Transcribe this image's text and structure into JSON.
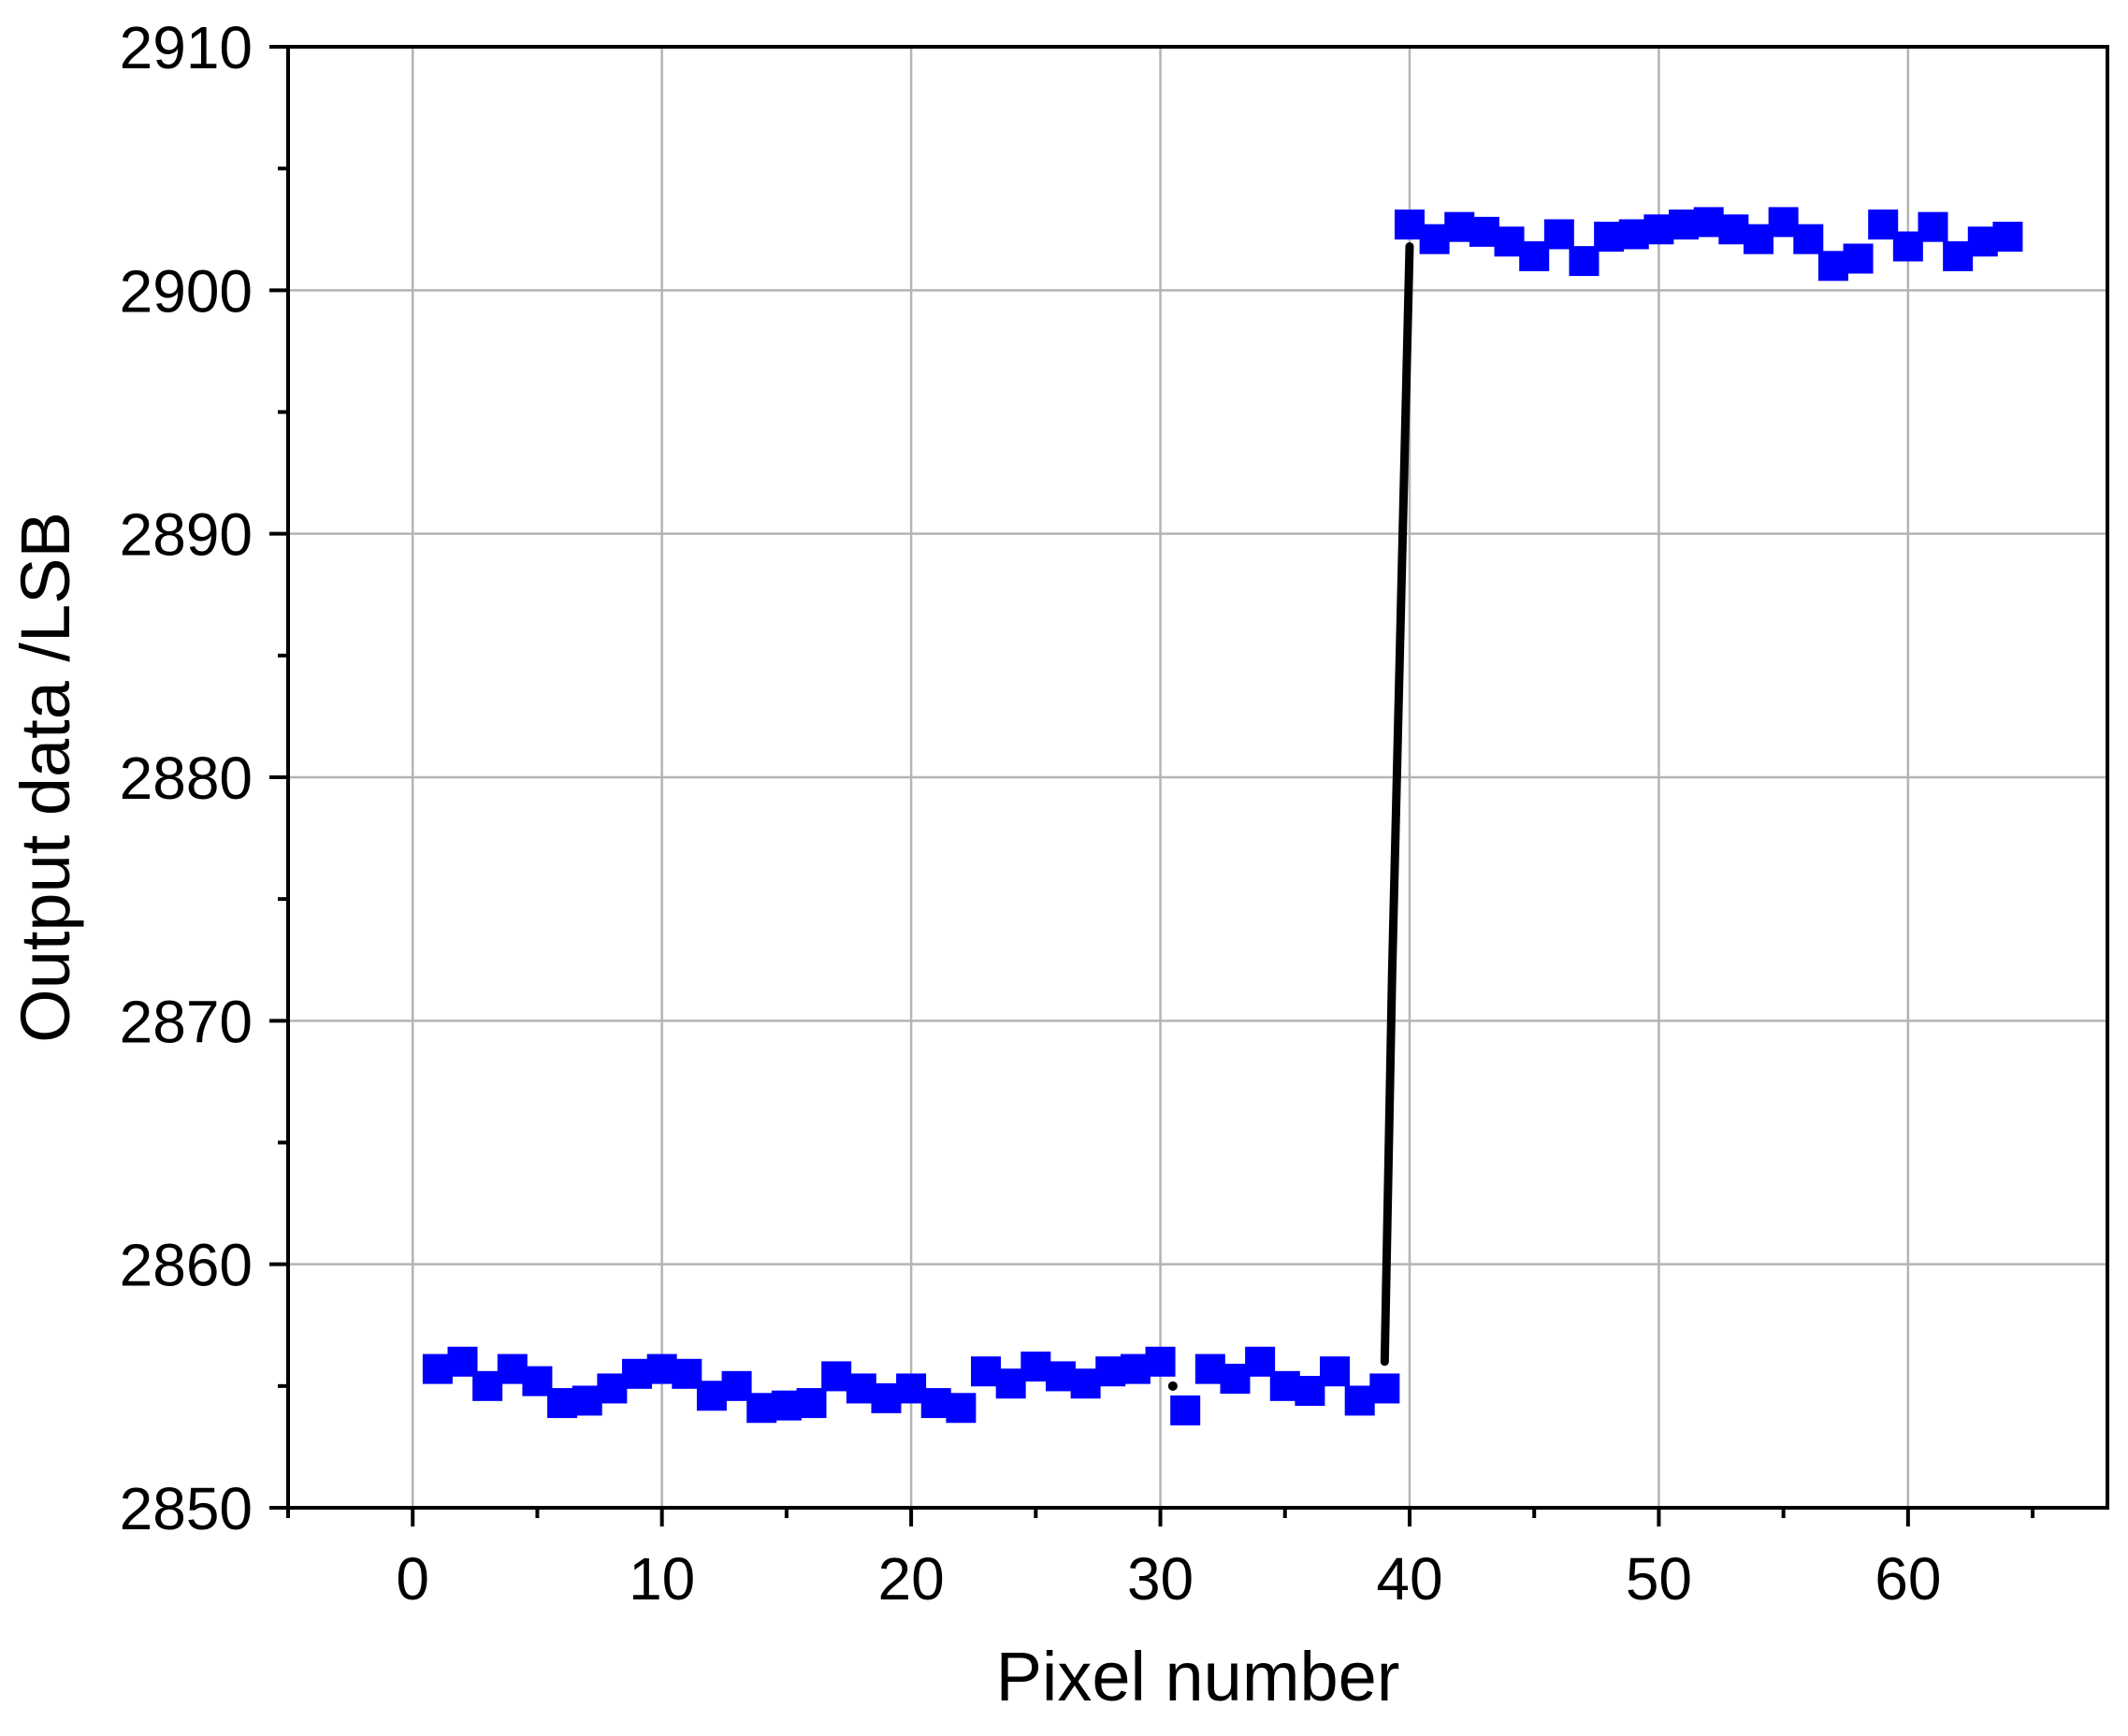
{
  "chart_data": {
    "type": "scatter",
    "title": "",
    "xlabel": "Pixel number",
    "ylabel": "Output data /LSB",
    "xlim": [
      -5,
      68
    ],
    "ylim": [
      2850,
      2910
    ],
    "xticks": [
      0,
      10,
      20,
      30,
      40,
      50,
      60
    ],
    "yticks": [
      2850,
      2860,
      2870,
      2880,
      2890,
      2900,
      2910
    ],
    "grid": true,
    "marker": "square",
    "marker_color": "#0000ff",
    "line_color": "#000000",
    "series": [
      {
        "x": [
          1,
          2,
          3,
          4,
          5,
          6,
          7,
          8,
          9,
          10,
          11,
          12,
          13,
          14,
          15,
          16,
          17,
          18,
          19,
          20,
          21,
          22,
          23,
          24,
          25,
          26,
          27,
          28,
          29,
          30,
          31,
          32,
          33,
          34,
          35,
          36,
          37,
          38,
          39,
          40,
          41,
          42,
          43,
          44,
          45,
          46,
          47,
          48,
          49,
          50,
          51,
          52,
          53,
          54,
          55,
          56,
          57,
          58,
          59,
          60,
          61,
          62,
          63,
          64
        ],
        "y": [
          2855.7,
          2856.0,
          2855.0,
          2855.7,
          2855.2,
          2854.3,
          2854.4,
          2854.9,
          2855.5,
          2855.7,
          2855.5,
          2854.6,
          2855.0,
          2854.1,
          2854.2,
          2854.3,
          2855.4,
          2854.9,
          2854.5,
          2854.9,
          2854.3,
          2854.1,
          2855.6,
          2855.1,
          2855.8,
          2855.4,
          2855.1,
          2855.6,
          2855.7,
          2856.0,
          2854.0,
          2855.7,
          2855.3,
          2856.0,
          2855.0,
          2854.8,
          2855.6,
          2854.4,
          2854.9,
          2902.7,
          2902.1,
          2902.6,
          2902.4,
          2902.0,
          2901.4,
          2902.3,
          2901.2,
          2902.2,
          2902.3,
          2902.5,
          2902.7,
          2902.8,
          2902.5,
          2902.1,
          2902.8,
          2902.1,
          2901.0,
          2901.3,
          2902.7,
          2901.8,
          2902.6,
          2901.4,
          2902.0,
          2902.2
        ]
      }
    ],
    "step_line": {
      "x": [
        39.0,
        39.3,
        40.0
      ],
      "y": [
        2856.0,
        2872.0,
        2901.8
      ]
    },
    "stray_marks": [
      {
        "x": 30.5,
        "y": 2855.0
      }
    ]
  }
}
